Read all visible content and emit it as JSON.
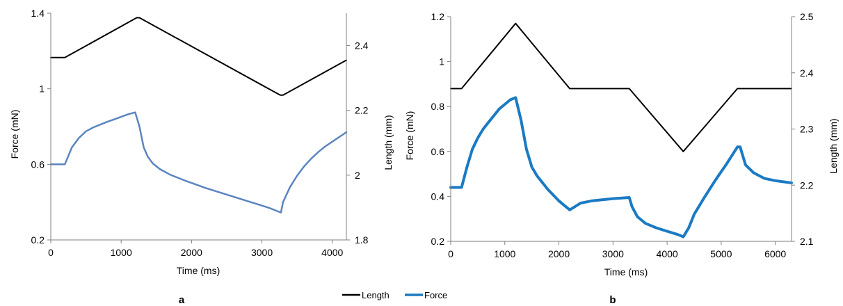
{
  "legend": {
    "items": [
      {
        "label": "Length",
        "color": "#000000"
      },
      {
        "label": "Force",
        "color": "#1a7ac4"
      }
    ]
  },
  "chart_data": [
    {
      "type": "line",
      "panel_label": "a",
      "xlabel": "Time (ms)",
      "ylabel": "Force (mN)",
      "y2label": "Length (mm)",
      "xlim": [
        0,
        4200
      ],
      "ylim": [
        0.2,
        1.4
      ],
      "y2lim": [
        1.8,
        2.5
      ],
      "xticks": [
        "0",
        "1000",
        "2000",
        "3000",
        "4000"
      ],
      "yticks": [
        "0.2",
        "0.6",
        "1",
        "1.4"
      ],
      "y2ticks": [
        "1.8",
        "2",
        "2.2",
        "2.4"
      ],
      "grid": false,
      "series": [
        {
          "name": "Length",
          "axis": "right",
          "color": "#000000",
          "width": 2,
          "x": [
            0,
            200,
            1220,
            1260,
            3260,
            3300,
            4200
          ],
          "y": [
            2.363,
            2.363,
            2.486,
            2.486,
            2.247,
            2.247,
            2.355
          ]
        },
        {
          "name": "Force",
          "axis": "left",
          "color": "#5b85c0",
          "width": 2.5,
          "x": [
            0,
            200,
            300,
            400,
            500,
            600,
            700,
            800,
            900,
            1000,
            1100,
            1200,
            1260,
            1320,
            1380,
            1450,
            1550,
            1700,
            1900,
            2200,
            2500,
            2800,
            3100,
            3270,
            3300,
            3400,
            3500,
            3600,
            3700,
            3800,
            3900,
            4000,
            4100,
            4200
          ],
          "y": [
            0.6,
            0.6,
            0.69,
            0.74,
            0.775,
            0.795,
            0.81,
            0.825,
            0.838,
            0.852,
            0.865,
            0.875,
            0.8,
            0.69,
            0.64,
            0.605,
            0.575,
            0.545,
            0.515,
            0.475,
            0.44,
            0.405,
            0.37,
            0.345,
            0.4,
            0.48,
            0.54,
            0.59,
            0.63,
            0.665,
            0.695,
            0.72,
            0.745,
            0.77
          ]
        }
      ]
    },
    {
      "type": "line",
      "panel_label": "b",
      "xlabel": "Time (ms)",
      "ylabel": "Force (mN)",
      "y2label": "Length (mm)",
      "xlim": [
        0,
        6300
      ],
      "ylim": [
        0.2,
        1.2
      ],
      "y2lim": [
        2.1,
        2.5
      ],
      "xticks": [
        "0",
        "1000",
        "2000",
        "3000",
        "4000",
        "5000",
        "6000"
      ],
      "yticks": [
        "0.2",
        "0.4",
        "0.6",
        "0.8",
        "1",
        "1.2"
      ],
      "y2ticks": [
        "2.1",
        "2.2",
        "2.3",
        "2.4",
        "2.5"
      ],
      "grid": false,
      "series": [
        {
          "name": "Length",
          "axis": "right",
          "color": "#000000",
          "width": 2,
          "x": [
            0,
            200,
            1200,
            2200,
            3300,
            4300,
            5300,
            6300
          ],
          "y": [
            2.372,
            2.372,
            2.488,
            2.372,
            2.372,
            2.26,
            2.372,
            2.372
          ]
        },
        {
          "name": "Force",
          "axis": "left",
          "color": "#1a7ac4",
          "width": 4,
          "x": [
            0,
            200,
            300,
            400,
            500,
            600,
            700,
            800,
            900,
            1000,
            1100,
            1200,
            1300,
            1400,
            1500,
            1600,
            1700,
            1800,
            1900,
            2000,
            2100,
            2200,
            2300,
            2400,
            2600,
            2800,
            3000,
            3300,
            3350,
            3450,
            3600,
            3800,
            4000,
            4200,
            4300,
            4400,
            4500,
            4700,
            4900,
            5100,
            5300,
            5350,
            5450,
            5600,
            5800,
            6000,
            6300
          ],
          "y": [
            0.44,
            0.44,
            0.53,
            0.61,
            0.66,
            0.7,
            0.73,
            0.76,
            0.79,
            0.81,
            0.83,
            0.84,
            0.74,
            0.61,
            0.53,
            0.49,
            0.46,
            0.43,
            0.405,
            0.38,
            0.36,
            0.34,
            0.355,
            0.37,
            0.38,
            0.385,
            0.39,
            0.395,
            0.355,
            0.31,
            0.28,
            0.26,
            0.245,
            0.23,
            0.22,
            0.26,
            0.32,
            0.4,
            0.475,
            0.545,
            0.62,
            0.62,
            0.54,
            0.505,
            0.48,
            0.47,
            0.46
          ]
        }
      ]
    }
  ]
}
